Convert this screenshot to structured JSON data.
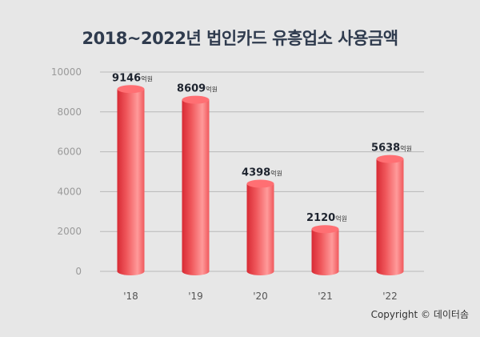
{
  "title": "2018~2022년 법인카드 유흥업소 사용금액",
  "copyright": "Copyright © 데이터솜",
  "colors": {
    "bar_light": "#ff9a9a",
    "bar_mid": "#f0585c",
    "bar_dark": "#d82a34",
    "bar_top": "#ff6f73",
    "grid": "#b9b9b9",
    "label": "#1f2530",
    "unit": "#333333",
    "tick": "#9a9a9a",
    "background": "#e7e7e7"
  },
  "chart_data": {
    "type": "bar",
    "title": "2018~2022년 법인카드 유흥업소 사용금액",
    "categories": [
      "'18",
      "'19",
      "'20",
      "'21",
      "'22"
    ],
    "values": [
      9146,
      8609,
      4398,
      2120,
      5638
    ],
    "value_unit": "억원",
    "ylim": [
      0,
      10000
    ],
    "yticks": [
      0,
      2000,
      4000,
      6000,
      8000,
      10000
    ],
    "xlabel": "",
    "ylabel": "",
    "grid": true,
    "style": "3d-cylinder"
  }
}
